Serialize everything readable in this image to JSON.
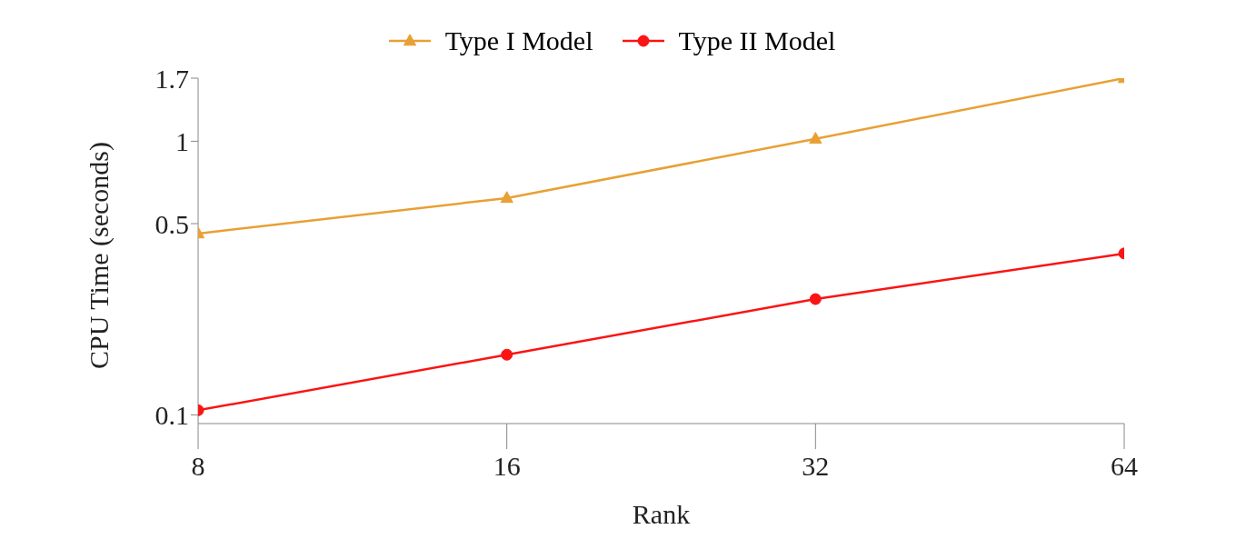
{
  "chart_data": {
    "type": "line",
    "xlabel": "Rank",
    "ylabel": "CPU Time (seconds)",
    "categories": [
      "8",
      "16",
      "32",
      "64"
    ],
    "log": "y",
    "ylim": [
      0.093,
      1.7
    ],
    "yticks": [
      0.1,
      0.5,
      1,
      1.7
    ],
    "grid": false,
    "legend": "top",
    "line_style": "solid",
    "series": [
      {
        "name": "Type I Model",
        "color": "#e8a035",
        "marker": "triangle",
        "values": [
          0.46,
          0.62,
          1.02,
          1.7
        ]
      },
      {
        "name": "Type II Model",
        "color": "#fa1414",
        "marker": "circle",
        "values": [
          0.104,
          0.166,
          0.265,
          0.389
        ]
      }
    ]
  }
}
